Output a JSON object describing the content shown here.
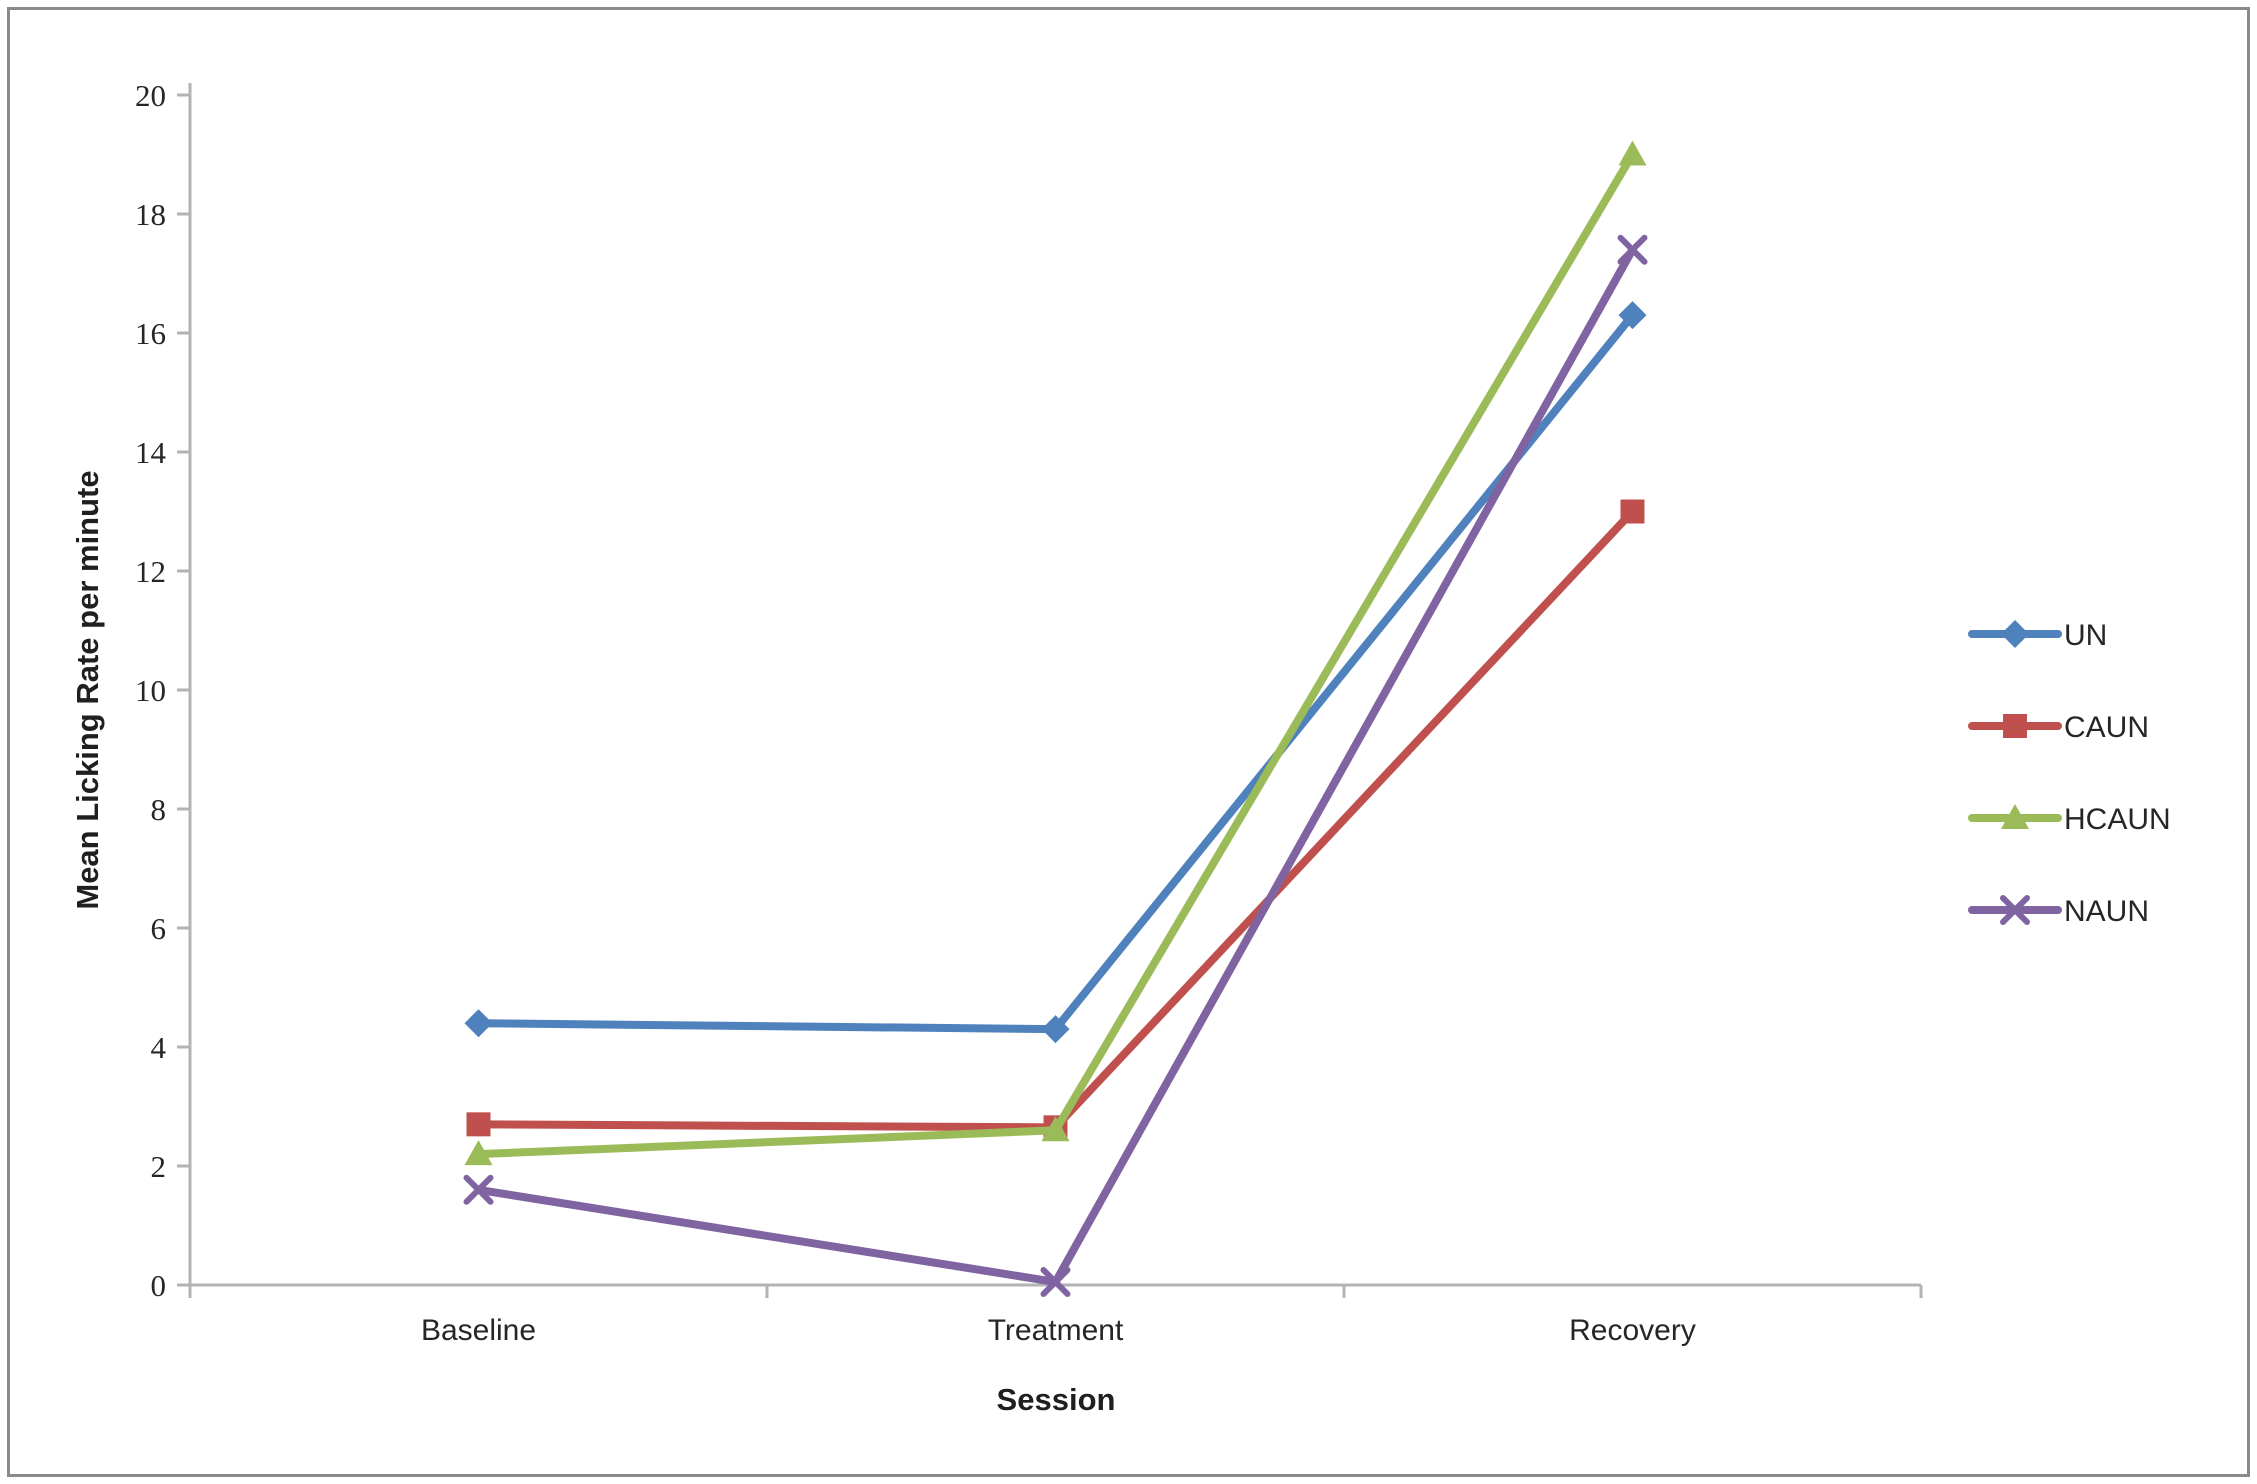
{
  "chart_data": {
    "type": "line",
    "title": "",
    "categories": [
      "Baseline",
      "Treatment",
      "Recovery"
    ],
    "series": [
      {
        "name": "UN",
        "values": [
          4.4,
          4.3,
          16.3
        ],
        "color": "#4F81BD",
        "marker": "diamond"
      },
      {
        "name": "CAUN",
        "values": [
          2.7,
          2.65,
          13.0
        ],
        "color": "#C0504D",
        "marker": "square"
      },
      {
        "name": "HCAUN",
        "values": [
          2.2,
          2.6,
          19.0
        ],
        "color": "#9BBB59",
        "marker": "triangle"
      },
      {
        "name": "NAUN",
        "values": [
          1.6,
          0.05,
          17.4
        ],
        "color": "#8064A2",
        "marker": "x"
      }
    ],
    "xlabel": "Session",
    "ylabel": "Mean Licking Rate per minute",
    "ylim": [
      0,
      20
    ],
    "ytick_step": 2,
    "yticks": [
      0,
      2,
      4,
      6,
      8,
      10,
      12,
      14,
      16,
      18,
      20
    ],
    "grid": false,
    "legend_position": "right",
    "axis_color": "#b3b3b3",
    "text_color": "#262626"
  }
}
